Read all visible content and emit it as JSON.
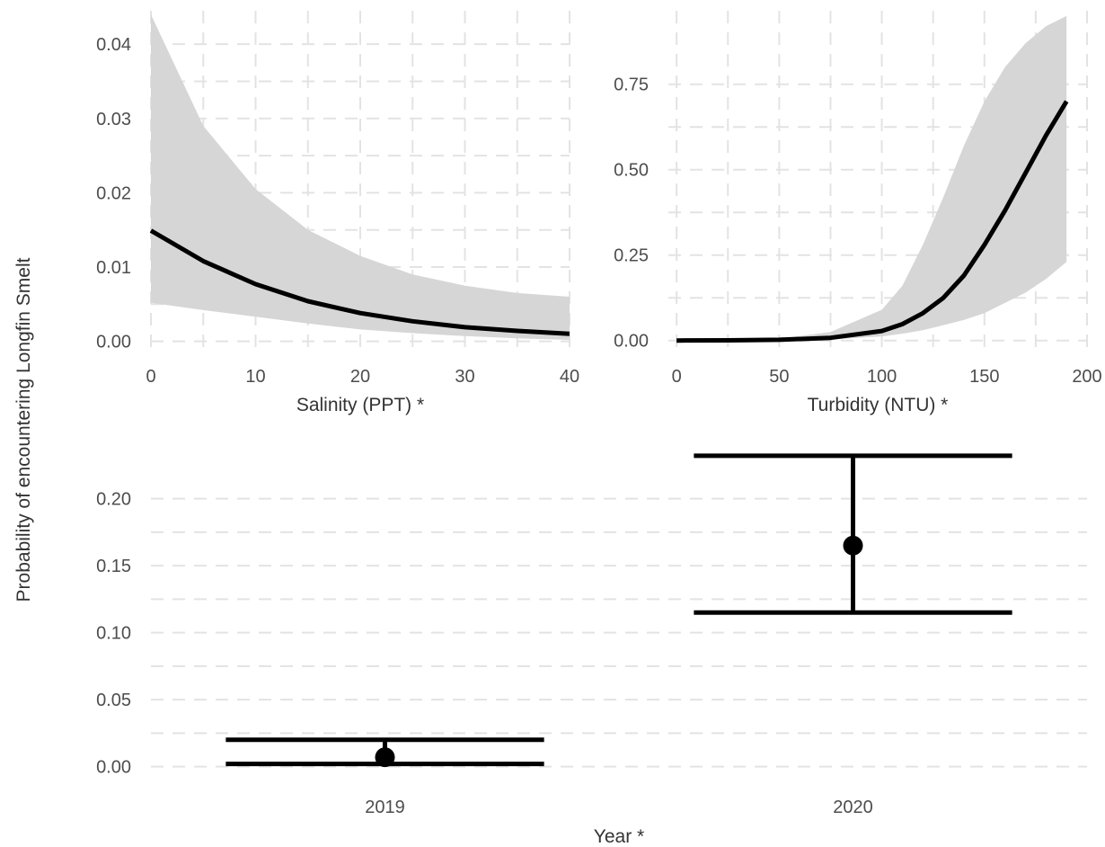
{
  "ylabel": "Probability of encountering Longfin Smelt",
  "chart_data": [
    {
      "type": "line",
      "xlabel": "Salinity (PPT) *",
      "xlim": [
        0,
        40
      ],
      "ylim": [
        -0.0015,
        0.0445
      ],
      "xticks": [
        0,
        10,
        20,
        30,
        40
      ],
      "yticks": [
        {
          "v": 0.0,
          "label": "0.00"
        },
        {
          "v": 0.01,
          "label": "0.01"
        },
        {
          "v": 0.02,
          "label": "0.02"
        },
        {
          "v": 0.03,
          "label": "0.03"
        },
        {
          "v": 0.04,
          "label": "0.04"
        }
      ],
      "grid": true,
      "series": [
        {
          "x": [
            0,
            5,
            10,
            15,
            20,
            25,
            30,
            35,
            40
          ],
          "y": [
            0.0149,
            0.0108,
            0.0077,
            0.0054,
            0.0038,
            0.0027,
            0.0019,
            0.0014,
            0.001
          ],
          "lower": [
            0.0052,
            0.0042,
            0.0033,
            0.0024,
            0.0016,
            0.0011,
            0.0007,
            0.0004,
            0.0002
          ],
          "upper": [
            0.044,
            0.029,
            0.0205,
            0.015,
            0.0115,
            0.009,
            0.0075,
            0.0065,
            0.006
          ]
        }
      ]
    },
    {
      "type": "line",
      "xlabel": "Turbidity (NTU) *",
      "xlim": [
        -4,
        200
      ],
      "ylim": [
        -0.035,
        0.965
      ],
      "xticks": [
        0,
        50,
        100,
        150,
        200
      ],
      "yticks": [
        {
          "v": 0.0,
          "label": "0.00"
        },
        {
          "v": 0.25,
          "label": "0.25"
        },
        {
          "v": 0.5,
          "label": "0.50"
        },
        {
          "v": 0.75,
          "label": "0.75"
        }
      ],
      "grid": true,
      "series": [
        {
          "x": [
            0,
            25,
            50,
            75,
            100,
            110,
            120,
            130,
            140,
            150,
            160,
            170,
            180,
            190
          ],
          "y": [
            0.0,
            0.0005,
            0.002,
            0.008,
            0.028,
            0.048,
            0.08,
            0.125,
            0.19,
            0.28,
            0.38,
            0.49,
            0.6,
            0.7
          ],
          "lower": [
            0.0,
            0.0,
            0.0005,
            0.003,
            0.012,
            0.02,
            0.03,
            0.045,
            0.06,
            0.08,
            0.11,
            0.14,
            0.18,
            0.23
          ],
          "upper": [
            0.0,
            0.002,
            0.005,
            0.025,
            0.09,
            0.16,
            0.28,
            0.42,
            0.57,
            0.7,
            0.8,
            0.87,
            0.92,
            0.95
          ]
        }
      ]
    },
    {
      "type": "errorbar",
      "xlabel": "Year *",
      "categories": [
        "2019",
        "2020"
      ],
      "ylim": [
        -0.009,
        0.24
      ],
      "yticks": [
        {
          "v": 0.0,
          "label": "0.00"
        },
        {
          "v": 0.05,
          "label": "0.05"
        },
        {
          "v": 0.1,
          "label": "0.10"
        },
        {
          "v": 0.15,
          "label": "0.15"
        },
        {
          "v": 0.2,
          "label": "0.20"
        }
      ],
      "grid": true,
      "points": [
        {
          "category": "2019",
          "estimate": 0.007,
          "lower": 0.002,
          "upper": 0.02
        },
        {
          "category": "2020",
          "estimate": 0.165,
          "lower": 0.115,
          "upper": 0.232
        }
      ]
    }
  ]
}
